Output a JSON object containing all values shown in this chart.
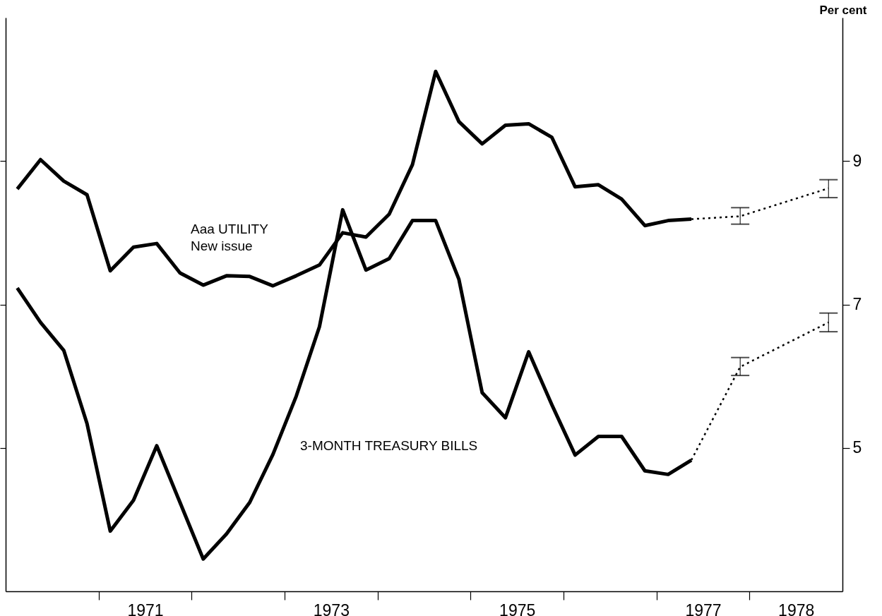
{
  "chart_data": {
    "type": "line",
    "ylabel": "Per cent",
    "xlim": [
      1970,
      1979
    ],
    "ylim": [
      3,
      11
    ],
    "xticks": [
      {
        "value": 1971,
        "label": null
      },
      {
        "value": 1971.5,
        "label": "1971"
      },
      {
        "value": 1972,
        "label": null
      },
      {
        "value": 1973,
        "label": null
      },
      {
        "value": 1973.5,
        "label": "1973"
      },
      {
        "value": 1974,
        "label": null
      },
      {
        "value": 1975,
        "label": null
      },
      {
        "value": 1975.5,
        "label": "1975"
      },
      {
        "value": 1976,
        "label": null
      },
      {
        "value": 1977,
        "label": null
      },
      {
        "value": 1977.5,
        "label": "1977"
      },
      {
        "value": 1978,
        "label": null
      },
      {
        "value": 1978.5,
        "label": "1978"
      }
    ],
    "yticks": [
      5,
      7,
      9
    ],
    "grid": false,
    "legend": false,
    "marker": "none",
    "x": [
      1970.125,
      1970.375,
      1970.625,
      1970.875,
      1971.125,
      1971.375,
      1971.625,
      1971.875,
      1972.125,
      1972.375,
      1972.625,
      1972.875,
      1973.125,
      1973.375,
      1973.625,
      1973.875,
      1974.125,
      1974.375,
      1974.625,
      1974.875,
      1975.125,
      1975.375,
      1975.625,
      1975.875,
      1976.125,
      1976.375,
      1976.625,
      1976.875,
      1977.125,
      1977.375
    ],
    "series": [
      {
        "name": "Aaa UTILITY\nNew issue",
        "color": "#000000",
        "line_style": "solid",
        "values": [
          8.61,
          9.02,
          8.72,
          8.53,
          7.47,
          7.8,
          7.85,
          7.44,
          7.27,
          7.4,
          7.39,
          7.26,
          7.4,
          7.55,
          8.0,
          7.94,
          8.26,
          8.95,
          10.25,
          9.55,
          9.24,
          9.5,
          9.52,
          9.33,
          8.64,
          8.67,
          8.47,
          8.1,
          8.17,
          8.19
        ]
      },
      {
        "name": "3-MONTH TREASURY BILLS",
        "color": "#000000",
        "line_style": "solid",
        "values": [
          7.23,
          6.75,
          6.36,
          5.34,
          3.84,
          4.27,
          5.03,
          4.24,
          3.45,
          3.8,
          4.24,
          4.91,
          5.72,
          6.69,
          8.32,
          7.48,
          7.64,
          8.17,
          8.17,
          7.35,
          5.77,
          5.42,
          6.34,
          5.6,
          4.9,
          5.16,
          5.16,
          4.68,
          4.63,
          4.83
        ]
      },
      {
        "color": "#000000",
        "line_style": "dotted",
        "x": [
          1977.375,
          1977.9,
          1978.85
        ],
        "values": [
          8.19,
          8.23,
          8.62
        ],
        "errors": [
          null,
          [
            8.12,
            8.35
          ],
          [
            8.49,
            8.74
          ]
        ]
      },
      {
        "color": "#000000",
        "line_style": "dotted",
        "x": [
          1977.375,
          1977.9,
          1978.85
        ],
        "values": [
          4.83,
          6.13,
          6.75
        ],
        "errors": [
          null,
          [
            6.01,
            6.26
          ],
          [
            6.62,
            6.88
          ]
        ]
      }
    ]
  }
}
